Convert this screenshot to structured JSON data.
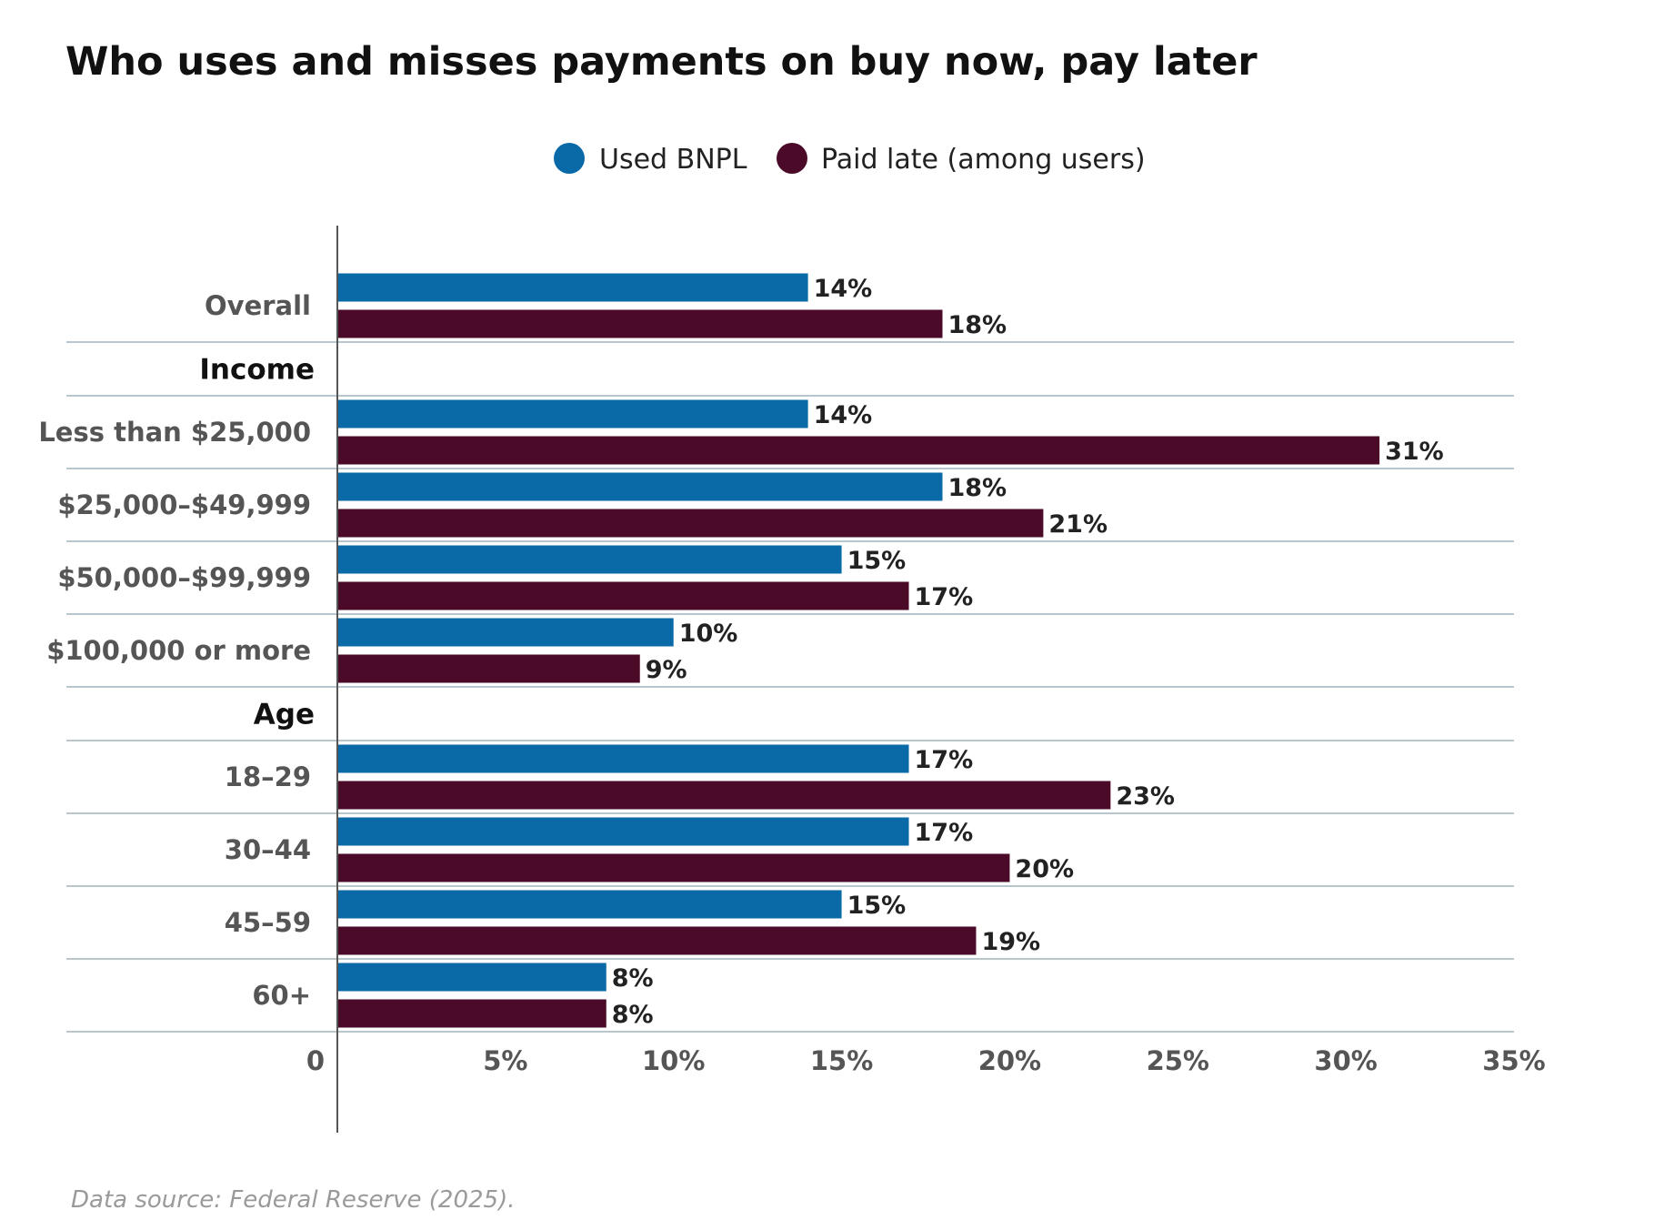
{
  "chart_data": {
    "type": "bar",
    "orientation": "horizontal",
    "title": "Who uses and misses payments on buy now, pay later",
    "source": "Data source: Federal Reserve (2025).",
    "legend_position": "top-center",
    "xlim": [
      0,
      35
    ],
    "x_ticks": [
      {
        "value": 0,
        "label": "0"
      },
      {
        "value": 5,
        "label": "5%"
      },
      {
        "value": 10,
        "label": "10%"
      },
      {
        "value": 15,
        "label": "15%"
      },
      {
        "value": 20,
        "label": "20%"
      },
      {
        "value": 25,
        "label": "25%"
      },
      {
        "value": 30,
        "label": "30%"
      },
      {
        "value": 35,
        "label": "35%"
      }
    ],
    "series": [
      {
        "name": "Used BNPL",
        "color": "#0a6aa8"
      },
      {
        "name": "Paid late (among users)",
        "color": "#4a0a28"
      }
    ],
    "rows": [
      {
        "kind": "category",
        "label": "Overall",
        "values": [
          14,
          18
        ],
        "value_labels": [
          "14%",
          "18%"
        ]
      },
      {
        "kind": "group",
        "label": "Income"
      },
      {
        "kind": "category",
        "label": "Less than $25,000",
        "values": [
          14,
          31
        ],
        "value_labels": [
          "14%",
          "31%"
        ]
      },
      {
        "kind": "category",
        "label": "$25,000–$49,999",
        "values": [
          18,
          21
        ],
        "value_labels": [
          "18%",
          "21%"
        ]
      },
      {
        "kind": "category",
        "label": "$50,000–$99,999",
        "values": [
          15,
          17
        ],
        "value_labels": [
          "15%",
          "17%"
        ]
      },
      {
        "kind": "category",
        "label": "$100,000 or more",
        "values": [
          10,
          9
        ],
        "value_labels": [
          "10%",
          "9%"
        ]
      },
      {
        "kind": "group",
        "label": "Age"
      },
      {
        "kind": "category",
        "label": "18–29",
        "values": [
          17,
          23
        ],
        "value_labels": [
          "17%",
          "23%"
        ]
      },
      {
        "kind": "category",
        "label": "30–44",
        "values": [
          17,
          20
        ],
        "value_labels": [
          "17%",
          "20%"
        ]
      },
      {
        "kind": "category",
        "label": "45–59",
        "values": [
          15,
          19
        ],
        "value_labels": [
          "15%",
          "19%"
        ]
      },
      {
        "kind": "category",
        "label": "60+",
        "values": [
          8,
          8
        ],
        "value_labels": [
          "8%",
          "8%"
        ]
      }
    ]
  }
}
